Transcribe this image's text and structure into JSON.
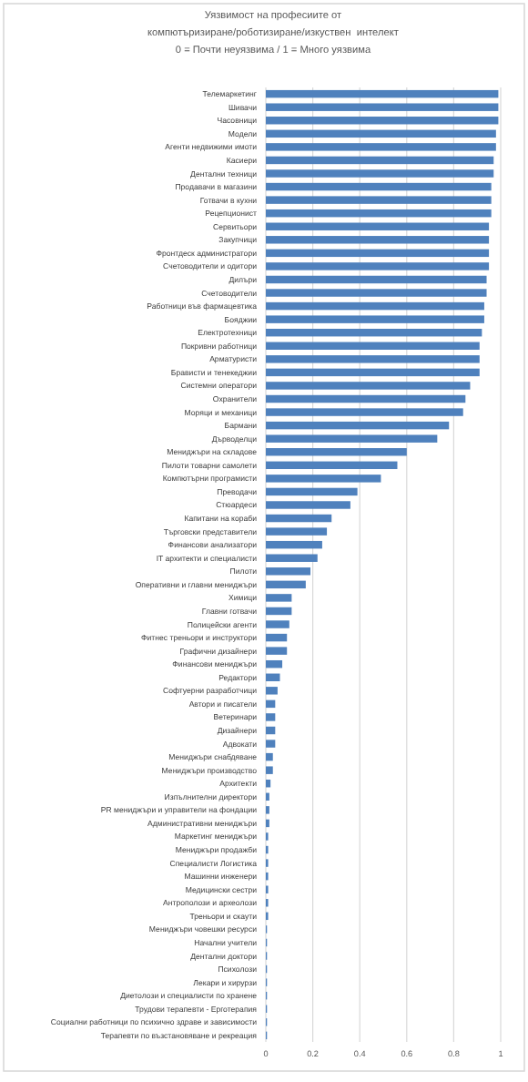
{
  "chart_data": {
    "type": "bar",
    "orientation": "horizontal",
    "title": "Уязвимост на професиите от\nкомпютъризиране/роботизиране/изкуствен  интелект\n0 = Почти неуязвима / 1 = Много уязвима",
    "color": "#4f81bd",
    "grid": "x",
    "xlim": [
      0,
      1
    ],
    "xticks": [
      0,
      0.2,
      0.4,
      0.6,
      0.8,
      1
    ],
    "categories": [
      "Телемаркетинг",
      "Шивачи",
      "Часовници",
      "Модели",
      "Агенти недвижими имоти",
      "Касиери",
      "Дентални техници",
      "Продавачи в магазини",
      "Готвачи в кухни",
      "Рецепционист",
      "Сервитьори",
      "Закупчици",
      "Фронтдеск администратори",
      "Счетоводители и одитори",
      "Дилъри",
      "Счетоводители",
      "Работници във фармацевтика",
      "Бояджии",
      "Електротехници",
      "Покривни работници",
      "Арматуристи",
      "Брависти и тенекеджии",
      "Системни оператори",
      "Охранители",
      "Моряци и механици",
      "Бармани",
      "Дърводелци",
      "Мениджъри на складове",
      "Пилоти товарни самолети",
      "Компютърни програмисти",
      "Преводачи",
      "Стюардеси",
      "Капитани на кораби",
      "Търговски представители",
      "Финансови анализатори",
      "IT архитекти и специалисти",
      "Пилоти",
      "Оперативни и главни мениджъри",
      "Химици",
      "Главни готвачи",
      "Полицейски агенти",
      "Фитнес треньори и инструктори",
      "Графични дизайнери",
      "Финансови мениджъри",
      "Редактори",
      "Софтуерни разработчици",
      "Автори и писатели",
      "Ветеринари",
      "Дизайнери",
      "Адвокати",
      "Мениджъри снабдяване",
      "Мениджъри производство",
      "Архитекти",
      "Изпълнителни директори",
      "PR мениджъри и управители на фондации",
      "Административни мениджъри",
      "Маркетинг мениджъри",
      "Мениджъри продажби",
      "Специалисти Логистика",
      "Машинни инженери",
      "Медицински сестри",
      "Антрополози и археолози",
      "Треньори и скаути",
      "Мениджъри човешки ресурси",
      "Начални учители",
      "Дентални доктори",
      "Психолози",
      "Лекари и хирурзи",
      "Диетолози и специалисти по хранене",
      "Трудови терапевти - Ерготерапия",
      "Социални работници по психично здраве и зависимости",
      "Терапевти по възстановяване и рекреация"
    ],
    "values": [
      0.99,
      0.99,
      0.99,
      0.98,
      0.98,
      0.97,
      0.97,
      0.96,
      0.96,
      0.96,
      0.95,
      0.95,
      0.95,
      0.95,
      0.94,
      0.94,
      0.93,
      0.93,
      0.92,
      0.91,
      0.91,
      0.91,
      0.87,
      0.85,
      0.84,
      0.78,
      0.73,
      0.6,
      0.56,
      0.49,
      0.39,
      0.36,
      0.28,
      0.26,
      0.24,
      0.22,
      0.19,
      0.17,
      0.11,
      0.11,
      0.1,
      0.09,
      0.09,
      0.07,
      0.06,
      0.05,
      0.04,
      0.04,
      0.04,
      0.04,
      0.03,
      0.03,
      0.02,
      0.015,
      0.015,
      0.015,
      0.01,
      0.01,
      0.01,
      0.01,
      0.01,
      0.01,
      0.01,
      0.005,
      0.005,
      0.005,
      0.005,
      0.005,
      0.005,
      0.005,
      0.005,
      0.005
    ]
  }
}
